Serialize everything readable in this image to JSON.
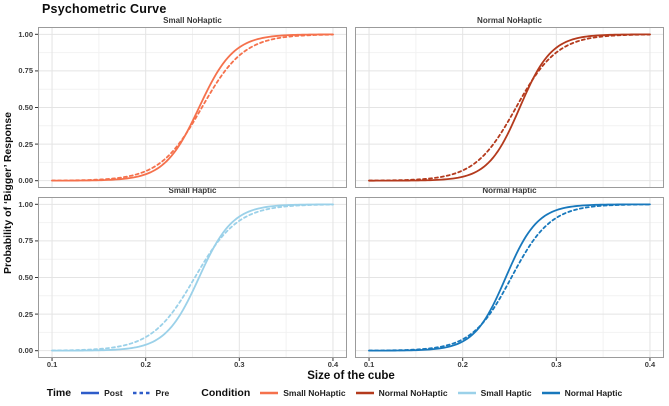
{
  "title": "Psychometric Curve",
  "chart_data": {
    "type": "line",
    "title": "Psychometric Curve",
    "xlabel": "Size of the cube",
    "ylabel": "Probability of ‘Bigger’ Response",
    "x_domain": [
      0.085,
      0.415
    ],
    "y_domain": [
      -0.05,
      1.05
    ],
    "x_ticks": [
      0.1,
      0.2,
      0.3,
      0.4
    ],
    "x_tick_labels": [
      "0.1",
      "0.2",
      "0.3",
      "0.4"
    ],
    "y_ticks": [
      0.0,
      0.25,
      0.5,
      0.75,
      1.0
    ],
    "y_tick_labels": [
      "0.00",
      "0.25",
      "0.50",
      "0.75",
      "1.00"
    ],
    "x_minor_gridlines": [
      0.15,
      0.25,
      0.35
    ],
    "y_minor_gridlines": [
      0.125,
      0.375,
      0.625,
      0.875
    ],
    "grid": true,
    "legend_position": "bottom",
    "curve_model": "y = 1 / (1 + exp(-(x - pse) / slope))",
    "facets": [
      {
        "title": "Small NoHaptic",
        "color": "#F5714C",
        "curves": [
          {
            "time": "Post",
            "line_style": "solid",
            "pse": 0.257,
            "slope": 0.0185
          },
          {
            "time": "Pre",
            "line_style": "dashed",
            "pse": 0.26,
            "slope": 0.0225
          }
        ]
      },
      {
        "title": "Normal NoHaptic",
        "color": "#B43A1D",
        "curves": [
          {
            "time": "Post",
            "line_style": "solid",
            "pse": 0.261,
            "slope": 0.017
          },
          {
            "time": "Pre",
            "line_style": "dashed",
            "pse": 0.257,
            "slope": 0.022
          }
        ]
      },
      {
        "title": "Small Haptic",
        "color": "#9BD1E9",
        "curves": [
          {
            "time": "Post",
            "line_style": "solid",
            "pse": 0.257,
            "slope": 0.018
          },
          {
            "time": "Pre",
            "line_style": "dashed",
            "pse": 0.2525,
            "slope": 0.023
          }
        ]
      },
      {
        "title": "Normal Haptic",
        "color": "#1878BC",
        "curves": [
          {
            "time": "Post",
            "line_style": "solid",
            "pse": 0.246,
            "slope": 0.017
          },
          {
            "time": "Pre",
            "line_style": "dashed",
            "pse": 0.252,
            "slope": 0.021
          }
        ]
      }
    ]
  },
  "legend": {
    "time": {
      "label": "Time",
      "key_color": "#2E5CC9",
      "items": [
        {
          "label": "Post",
          "line_style": "solid"
        },
        {
          "label": "Pre",
          "line_style": "dashed"
        }
      ]
    },
    "condition": {
      "label": "Condition",
      "items": [
        {
          "label": "Small NoHaptic",
          "color": "#F5714C"
        },
        {
          "label": "Normal NoHaptic",
          "color": "#B43A1D"
        },
        {
          "label": "Small Haptic",
          "color": "#9BD1E9"
        },
        {
          "label": "Normal Haptic",
          "color": "#1878BC"
        }
      ]
    }
  },
  "colors": {
    "grid_major": "#E4E4E4",
    "grid_minor": "#F2F2F2",
    "panel_border": "#9B9B9B",
    "tick_mark": "#333333"
  }
}
